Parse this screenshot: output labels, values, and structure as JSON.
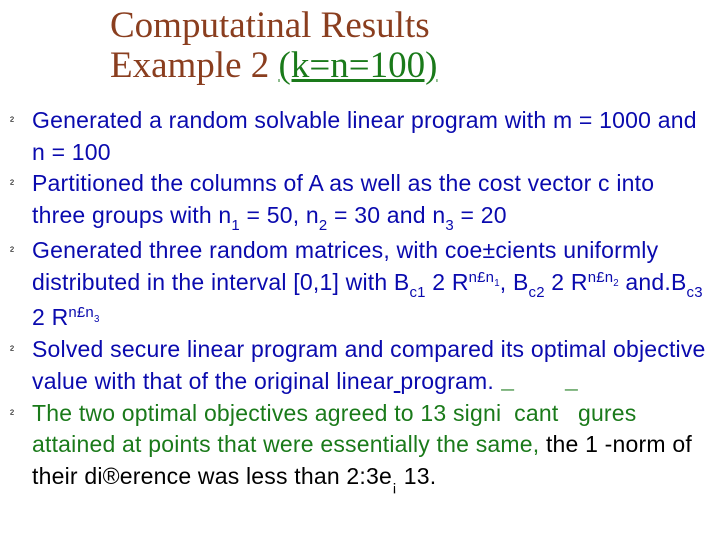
{
  "colors": {
    "blue": "#0a0aae",
    "green": "#1a7a1a",
    "brown": "#8a3e1f",
    "black": "#000000",
    "background": "#ffffff"
  },
  "typography": {
    "title_font": "Times New Roman",
    "title_size_pt": 28,
    "body_font": "Arial",
    "body_size_pt": 17,
    "bullet_marker": "²"
  },
  "title": {
    "line1": "Computatinal Results",
    "line2_a": "Example 2 ",
    "line2_b": "(k=n=100)"
  },
  "bullets": [
    {
      "color": "blue",
      "text": "Generated a random solvable linear program with m = 1000 and n = 100"
    },
    {
      "color": "blue",
      "text_html": "Partitioned the columns of A as well as the cost vector c into three groups with n<sub>1</sub> = 50, n<sub>2</sub> = 30 and n<sub>3</sub> = 20"
    },
    {
      "color": "blue",
      "text_html": "Generated three random matrices, with coe±cients uniformly distributed in the interval [0,1] with B<sub>c1</sub> 2 R<sup>n£n<sub>1</sub></sup>, B<sub>c2</sub> 2 R<sup>n£n<sub>2</sub></sup> and.B<sub>c3</sub> 2 R<sup>n£n<sub>3</sub></sup>"
    },
    {
      "color": "blue",
      "text_html": "Solved secure linear program and compared its optimal objective value with that of the original linear<span style=\"text-decoration:underline\">&nbsp;</span>program."
    },
    {
      "color": "green",
      "text_html": "The two optimal objectives agreed to 13 signi<span style=\"position:relative;top:-0.6em\">¯</span>cant <span style=\"position:relative;top:-0.6em\">¯</span>gures attained at points that were essentially the same, <span class=\"black\">the 1 -norm of their di®erence was less than 2:3e<sub>¡</sub> 13.</span>"
    }
  ]
}
